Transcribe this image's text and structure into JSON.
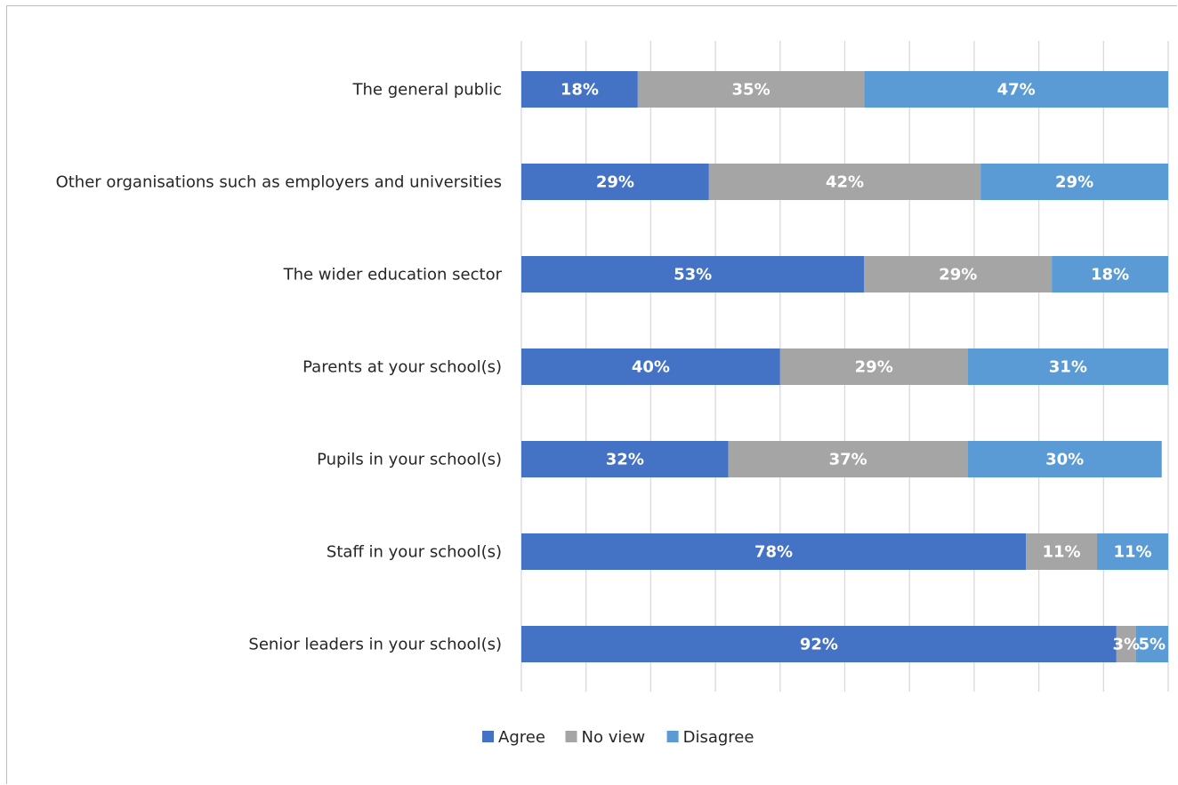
{
  "chart_data": {
    "type": "bar",
    "orientation": "horizontal",
    "stacked": true,
    "percent_stacked": true,
    "categories": [
      "The general public",
      "Other organisations such as employers and universities",
      "The wider education sector",
      "Parents at your school(s)",
      "Pupils in your school(s)",
      "Staff in your school(s)",
      "Senior leaders in your school(s)"
    ],
    "series": [
      {
        "name": "Agree",
        "values": [
          18,
          29,
          53,
          40,
          32,
          78,
          92
        ],
        "labels": [
          "18%",
          "29%",
          "53%",
          "40%",
          "32%",
          "78%",
          "92%"
        ],
        "color": "#4472c4"
      },
      {
        "name": "No view",
        "values": [
          35,
          42,
          29,
          29,
          37,
          11,
          3
        ],
        "labels": [
          "35%",
          "42%",
          "29%",
          "29%",
          "37%",
          "11%",
          "3%"
        ],
        "color": "#a5a5a5"
      },
      {
        "name": "Disagree",
        "values": [
          47,
          29,
          18,
          31,
          30,
          11,
          5
        ],
        "labels": [
          "47%",
          "29%",
          "18%",
          "31%",
          "30%",
          "11%",
          "5%"
        ],
        "color": "#5b9bd5"
      }
    ],
    "xlim": [
      0,
      100
    ],
    "grid": true,
    "legend_position": "bottom",
    "title": "",
    "xlabel": "",
    "ylabel": ""
  }
}
